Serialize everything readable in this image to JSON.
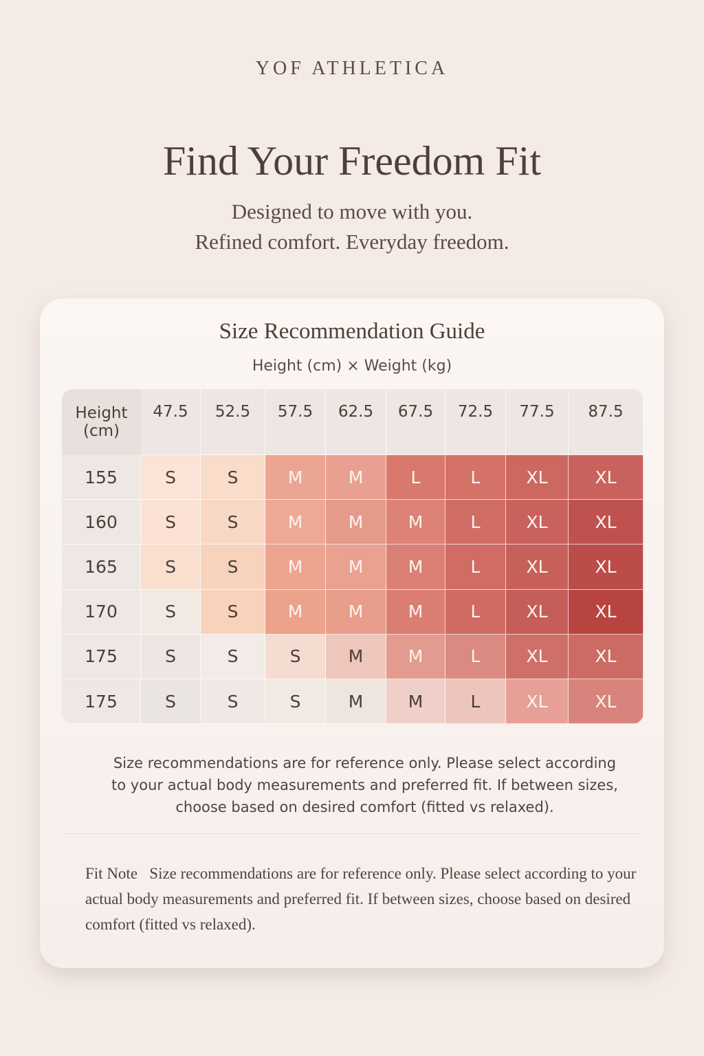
{
  "header": {
    "brand": "YOF ATHLETICA",
    "title": "Find Your Freedom Fit",
    "subtitle": [
      "Designed to move with you.",
      "Refined comfort. Everyday freedom."
    ]
  },
  "card": {
    "title": "Size Recommendation Guide",
    "subtitle": "Height (cm) × Weight (kg)",
    "table": {
      "corner": "Height (cm)",
      "columns": [
        47.5,
        52.5,
        57.5,
        62.5,
        67.5,
        72.5,
        77.5,
        87.5
      ],
      "rows": [
        {
          "height": 155,
          "sizes": [
            "S",
            "S",
            "M",
            "M",
            "L",
            "L",
            "XL",
            "XL"
          ],
          "colors": [
            "#fbe3d5",
            "#f9dcc9",
            "#eca593",
            "#e9a090",
            "#d9796e",
            "#d47268",
            "#cc6860",
            "#c9625c"
          ]
        },
        {
          "height": 160,
          "sizes": [
            "S",
            "S",
            "M",
            "M",
            "M",
            "L",
            "XL",
            "XL"
          ],
          "colors": [
            "#fbe2d4",
            "#f8d8c5",
            "#eea894",
            "#e69a8a",
            "#dc8276",
            "#d06e66",
            "#c9625c",
            "#bf524e"
          ]
        },
        {
          "height": 165,
          "sizes": [
            "S",
            "S",
            "M",
            "M",
            "M",
            "L",
            "XL",
            "XL"
          ],
          "colors": [
            "#fadfcf",
            "#f7d3bd",
            "#eea48e",
            "#eaa18f",
            "#db8074",
            "#d06c64",
            "#c8605a",
            "#bb4c48"
          ]
        },
        {
          "height": 170,
          "sizes": [
            "S",
            "S",
            "M",
            "M",
            "M",
            "L",
            "XL",
            "XL"
          ],
          "colors": [
            "#f3e9e3",
            "#f9d2bb",
            "#eda28b",
            "#e99d8b",
            "#db7e72",
            "#cf6b63",
            "#c55d58",
            "#b8443f"
          ]
        },
        {
          "height": 175,
          "sizes": [
            "S",
            "S",
            "S",
            "M",
            "M",
            "L",
            "XL",
            "XL"
          ],
          "colors": [
            "#ede6e3",
            "#f2ebe7",
            "#f5dcd0",
            "#efc6bb",
            "#e39b8f",
            "#da8a80",
            "#cf7068",
            "#cc6a64"
          ]
        },
        {
          "height": 175,
          "sizes": [
            "S",
            "S",
            "S",
            "M",
            "M",
            "L",
            "XL",
            "XL"
          ],
          "colors": [
            "#ebe5e2",
            "#efe8e4",
            "#f1e9e4",
            "#efe5df",
            "#efcfc7",
            "#eec5bc",
            "#e6a097",
            "#d8837b"
          ]
        }
      ]
    },
    "disclaimer": "Size recommendations are for reference only. Please select according to your actual body measurements and preferred fit. If between sizes, choose based on desired comfort (fitted vs relaxed).",
    "fit_note": {
      "label": "Fit Note",
      "text": "Size recommendations are for reference only. Please select according to your actual body measurements and preferred fit. If between sizes, choose based on desired comfort (fitted vs relaxed)."
    }
  }
}
